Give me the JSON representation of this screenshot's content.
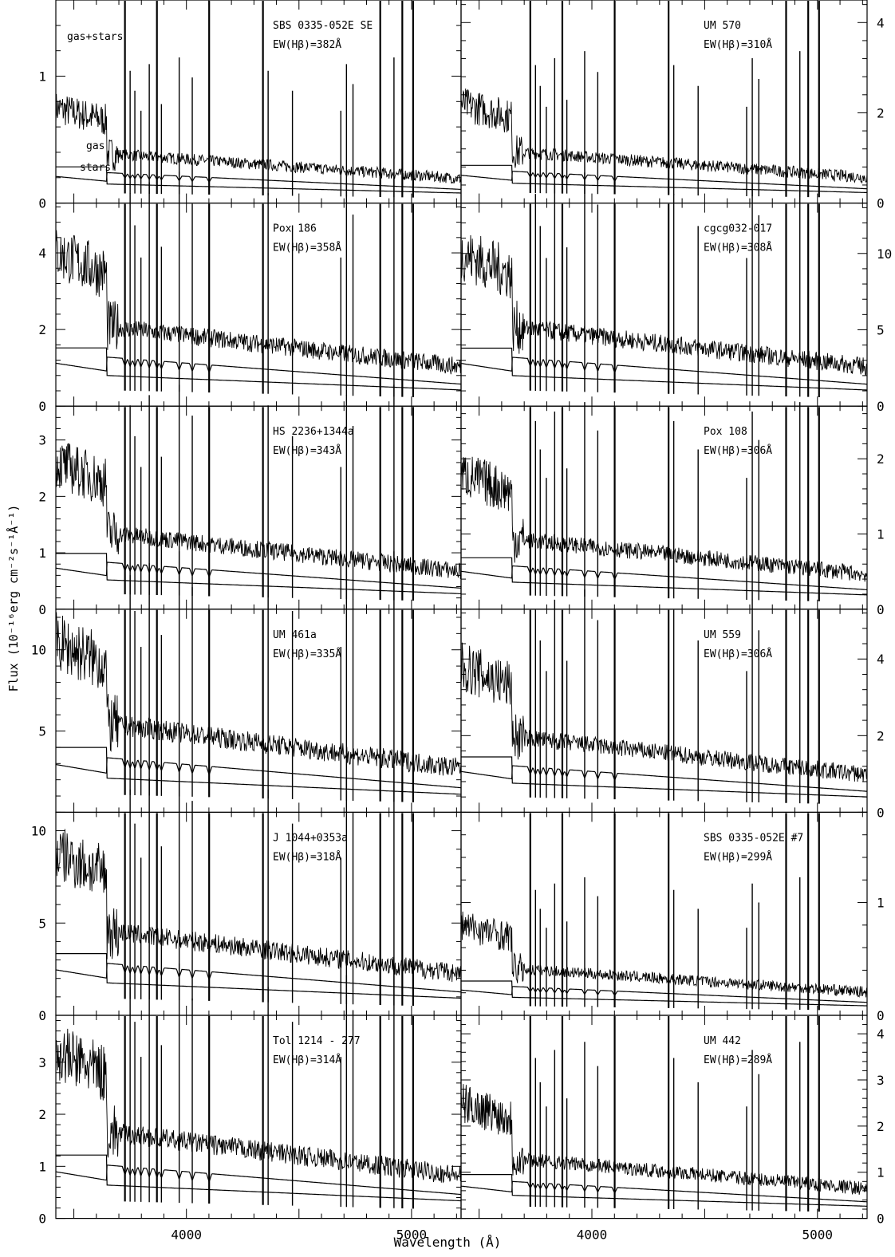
{
  "chart_data": {
    "type": "line",
    "xlabel": "Wavelength (Å)",
    "ylabel": "Flux (10⁻¹⁶erg cm⁻²s⁻¹Å⁻¹)",
    "xlim": [
      3420,
      5220
    ],
    "x_ticks": [
      4000,
      5000
    ],
    "component_labels": {
      "total": "gas+stars",
      "gas": "gas",
      "stars": "stars"
    },
    "emission_lines": [
      3727,
      3750,
      3771,
      3798,
      3835,
      3869,
      3889,
      3968,
      4026,
      4101,
      4340,
      4363,
      4471,
      4686,
      4711,
      4740,
      4861,
      4922,
      4959,
      5007
    ],
    "panels": [
      {
        "name": "SBS 0335-052E SE",
        "ew": "EW(Hβ)=382Å",
        "ymax": 1.6,
        "ticks": [
          "0",
          "1"
        ],
        "side": "left",
        "level": 0.75,
        "show_components": true
      },
      {
        "name": "UM 570",
        "ew": "EW(Hβ)=310Å",
        "ymax": 4.5,
        "ticks": [
          "0",
          "2",
          "4"
        ],
        "side": "right",
        "level": 2.2
      },
      {
        "name": "Pox  186",
        "ew": "EW(Hβ)=358Å",
        "ymax": 5.3,
        "ticks": [
          "0",
          "2",
          "4"
        ],
        "side": "left",
        "level": 4.0
      },
      {
        "name": "cgcg032-017",
        "ew": "EW(Hβ)=308Å",
        "ymax": 13.3,
        "ticks": [
          "0",
          "5",
          "10"
        ],
        "side": "right",
        "level": 10.0
      },
      {
        "name": "HS  2236+1344a",
        "ew": "EW(Hβ)=343Å",
        "ymax": 3.6,
        "ticks": [
          "0",
          "1",
          "2",
          "3"
        ],
        "side": "left",
        "level": 2.6
      },
      {
        "name": "Pox 108",
        "ew": "EW(Hβ)=306Å",
        "ymax": 2.7,
        "ticks": [
          "0",
          "1",
          "2"
        ],
        "side": "right",
        "level": 1.8
      },
      {
        "name": "UM  461a",
        "ew": "EW(Hβ)=335Å",
        "ymax": 12.5,
        "ticks": [
          "5",
          "10"
        ],
        "side": "left",
        "level": 10.5
      },
      {
        "name": "UM 559",
        "ew": "EW(Hβ)=306Å",
        "ymax": 5.3,
        "ticks": [
          "0",
          "2",
          "4"
        ],
        "side": "right",
        "level": 3.8
      },
      {
        "name": "J 1044+0353a",
        "ew": "EW(Hβ)=318Å",
        "ymax": 11.0,
        "ticks": [
          "0",
          "5",
          "10"
        ],
        "side": "left",
        "level": 8.8
      },
      {
        "name": "SBS 0335-052E  #7",
        "ew": "EW(Hβ)=299Å",
        "ymax": 1.8,
        "ticks": [
          "0",
          "1"
        ],
        "side": "right",
        "level": 0.8
      },
      {
        "name": "Tol  1214 - 277",
        "ew": "EW(Hβ)=314Å",
        "ymax": 3.9,
        "ticks": [
          "0",
          "1",
          "2",
          "3"
        ],
        "side": "left",
        "level": 3.2
      },
      {
        "name": "UM 442",
        "ew": "EW(Hβ)=289Å",
        "ymax": 4.4,
        "ticks": [
          "0",
          "1",
          "2",
          "3",
          "4"
        ],
        "side": "right",
        "level": 2.5
      }
    ]
  }
}
